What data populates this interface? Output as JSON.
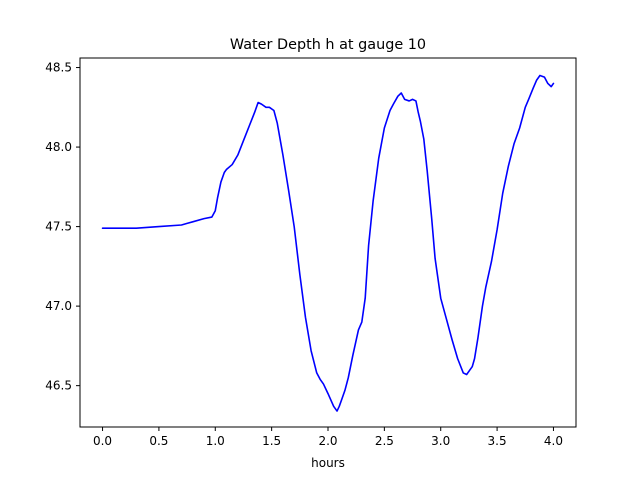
{
  "chart_data": {
    "type": "line",
    "title": "Water Depth h at gauge 10",
    "xlabel": "hours",
    "ylabel": "",
    "xlim": [
      -0.2,
      4.2
    ],
    "ylim": [
      46.24,
      48.56
    ],
    "x_ticks": [
      0.0,
      0.5,
      1.0,
      1.5,
      2.0,
      2.5,
      3.0,
      3.5,
      4.0
    ],
    "x_tick_labels": [
      "0.0",
      "0.5",
      "1.0",
      "1.5",
      "2.0",
      "2.5",
      "3.0",
      "3.5",
      "4.0"
    ],
    "y_ticks": [
      46.5,
      47.0,
      47.5,
      48.0,
      48.5
    ],
    "y_tick_labels": [
      "46.5",
      "47.0",
      "47.5",
      "48.0",
      "48.5"
    ],
    "grid": false,
    "series": [
      {
        "color": "#0000ff",
        "x": [
          0.0,
          0.1,
          0.3,
          0.5,
          0.7,
          0.75,
          0.8,
          0.9,
          0.97,
          1.0,
          1.02,
          1.05,
          1.08,
          1.1,
          1.15,
          1.2,
          1.25,
          1.3,
          1.35,
          1.38,
          1.41,
          1.45,
          1.48,
          1.52,
          1.55,
          1.58,
          1.6,
          1.65,
          1.7,
          1.75,
          1.8,
          1.85,
          1.9,
          1.93,
          1.96,
          2.0,
          2.05,
          2.08,
          2.1,
          2.12,
          2.15,
          2.18,
          2.22,
          2.27,
          2.3,
          2.33,
          2.36,
          2.4,
          2.45,
          2.5,
          2.55,
          2.58,
          2.62,
          2.65,
          2.68,
          2.72,
          2.75,
          2.78,
          2.8,
          2.82,
          2.85,
          2.88,
          2.92,
          2.95,
          3.0,
          3.05,
          3.1,
          3.15,
          3.2,
          3.23,
          3.25,
          3.28,
          3.3,
          3.33,
          3.37,
          3.4,
          3.45,
          3.5,
          3.55,
          3.6,
          3.65,
          3.7,
          3.75,
          3.78,
          3.82,
          3.85,
          3.88,
          3.92,
          3.95,
          3.98,
          4.0
        ],
        "y": [
          47.49,
          47.49,
          47.49,
          47.5,
          47.51,
          47.52,
          47.53,
          47.55,
          47.56,
          47.6,
          47.68,
          47.78,
          47.84,
          47.86,
          47.89,
          47.95,
          48.04,
          48.13,
          48.22,
          48.28,
          48.27,
          48.25,
          48.25,
          48.23,
          48.15,
          48.03,
          47.95,
          47.73,
          47.5,
          47.2,
          46.93,
          46.72,
          46.58,
          46.54,
          46.51,
          46.45,
          46.37,
          46.34,
          46.37,
          46.41,
          46.47,
          46.55,
          46.69,
          46.85,
          46.9,
          47.05,
          47.38,
          47.66,
          47.93,
          48.12,
          48.23,
          48.27,
          48.32,
          48.34,
          48.3,
          48.29,
          48.3,
          48.29,
          48.22,
          48.16,
          48.05,
          47.85,
          47.55,
          47.3,
          47.05,
          46.92,
          46.79,
          46.67,
          46.58,
          46.57,
          46.59,
          46.62,
          46.67,
          46.8,
          47.0,
          47.12,
          47.28,
          47.48,
          47.71,
          47.88,
          48.02,
          48.12,
          48.25,
          48.3,
          48.37,
          48.42,
          48.45,
          48.44,
          48.4,
          48.38,
          48.4
        ]
      }
    ]
  }
}
